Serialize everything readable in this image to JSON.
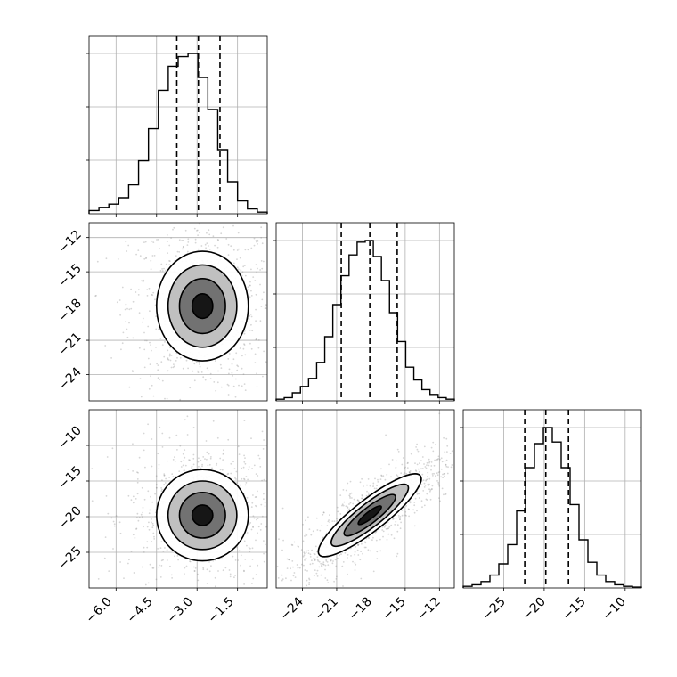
{
  "chart_data": [
    {
      "type": "histogram",
      "panel": "row0-col0",
      "variable": 0,
      "range": [
        -7.0,
        -0.4
      ],
      "bin_counts": [
        0.02,
        0.04,
        0.06,
        0.1,
        0.18,
        0.33,
        0.53,
        0.77,
        0.92,
        0.98,
        1.0,
        0.85,
        0.65,
        0.4,
        0.2,
        0.08,
        0.03,
        0.01
      ],
      "quantile_lines": [
        -3.75,
        -2.95,
        -2.15
      ],
      "xticks": [
        -6.0,
        -4.5,
        -3.0,
        -1.5
      ],
      "grid": true
    },
    {
      "type": "histogram",
      "panel": "row1-col1",
      "variable": 1,
      "range": [
        -26.3,
        -10.7
      ],
      "bin_counts": [
        0.01,
        0.02,
        0.05,
        0.09,
        0.14,
        0.24,
        0.4,
        0.6,
        0.78,
        0.91,
        0.99,
        1.0,
        0.9,
        0.75,
        0.55,
        0.37,
        0.21,
        0.13,
        0.07,
        0.04,
        0.02,
        0.01
      ],
      "quantile_lines": [
        -20.6,
        -18.1,
        -15.7
      ],
      "xticks": [
        -24,
        -21,
        -18,
        -15,
        -12
      ],
      "grid": true
    },
    {
      "type": "histogram",
      "panel": "row2-col2",
      "variable": 2,
      "range": [
        -30.0,
        -8.0
      ],
      "bin_counts": [
        0.01,
        0.02,
        0.04,
        0.08,
        0.15,
        0.27,
        0.48,
        0.75,
        0.9,
        1.0,
        0.91,
        0.75,
        0.52,
        0.3,
        0.16,
        0.08,
        0.04,
        0.02,
        0.01,
        0.005
      ],
      "quantile_lines": [
        -22.4,
        -19.8,
        -17.0
      ],
      "xticks": [
        -25,
        -20,
        -15,
        -10
      ],
      "grid": true
    },
    {
      "type": "scatter-density",
      "panel": "row1-col0",
      "x_variable": 0,
      "y_variable": 1,
      "xlim": [
        -7.0,
        -0.4
      ],
      "ylim": [
        -26.3,
        -10.7
      ],
      "center": [
        -2.8,
        -18.0
      ],
      "sigma": [
        0.85,
        2.4
      ],
      "correlation": 0.0,
      "yticks": [
        -12,
        -15,
        -18,
        -21,
        -24
      ],
      "grid": true
    },
    {
      "type": "scatter-density",
      "panel": "row2-col0",
      "x_variable": 0,
      "y_variable": 2,
      "xlim": [
        -7.0,
        -0.4
      ],
      "ylim": [
        -30.0,
        -5.0
      ],
      "center": [
        -2.8,
        -19.8
      ],
      "sigma": [
        0.85,
        3.2
      ],
      "correlation": 0.0,
      "xticks": [
        -6.0,
        -4.5,
        -3.0,
        -1.5
      ],
      "yticks": [
        -10,
        -15,
        -20,
        -25
      ],
      "grid": true
    },
    {
      "type": "scatter-density",
      "panel": "row2-col1",
      "x_variable": 1,
      "y_variable": 2,
      "xlim": [
        -26.3,
        -10.7
      ],
      "ylim": [
        -30.0,
        -5.0
      ],
      "center": [
        -18.1,
        -19.8
      ],
      "sigma": [
        2.4,
        3.2
      ],
      "correlation": 0.85,
      "xticks": [
        -24,
        -21,
        -18,
        -15,
        -12
      ],
      "grid": true
    }
  ],
  "tick_labels": {
    "col0_x": [
      "−6.0",
      "−4.5",
      "−3.0",
      "−1.5"
    ],
    "col1_x": [
      "−24",
      "−21",
      "−18",
      "−15",
      "−12"
    ],
    "col2_x": [
      "−25",
      "−20",
      "−15",
      "−10"
    ],
    "row1_y": [
      "−12",
      "−15",
      "−18",
      "−21",
      "−24"
    ],
    "row2_y": [
      "−10",
      "−15",
      "−20",
      "−25"
    ]
  },
  "colors": {
    "points": "#8a8a8a",
    "lines": "#000000",
    "grid": "#b0b0b0"
  }
}
